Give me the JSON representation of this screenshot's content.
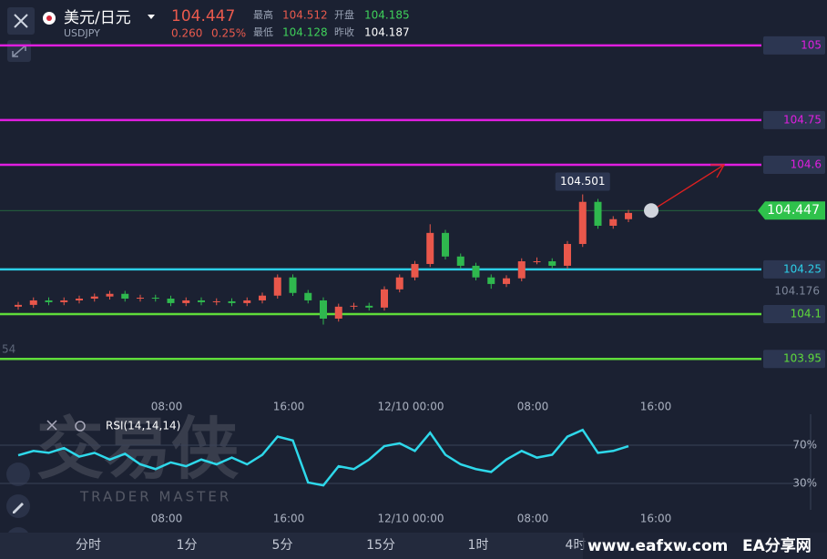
{
  "header": {
    "symbol": "美元/日元",
    "code": "USDJPY",
    "price": "104.447",
    "change": "0.260",
    "change_pct": "0.25%",
    "stats": [
      {
        "label": "最高",
        "value": "104.512"
      },
      {
        "label": "开盘",
        "value": "104.185"
      },
      {
        "label": "最低",
        "value": "104.128"
      },
      {
        "label": "昨收",
        "value": "104.187"
      }
    ]
  },
  "chart_data": [
    {
      "type": "candlestick",
      "ylim": [
        103.841,
        105.152
      ],
      "up_color": "#e9574b",
      "down_color": "#2fb84e",
      "open": [
        104.125,
        104.131,
        104.146,
        104.14,
        104.146,
        104.152,
        104.159,
        104.168,
        104.152,
        104.155,
        104.152,
        104.137,
        104.146,
        104.14,
        104.143,
        104.137,
        104.146,
        104.162,
        104.223,
        104.171,
        104.146,
        104.085,
        104.125,
        104.128,
        104.122,
        104.183,
        104.223,
        104.268,
        104.372,
        104.293,
        104.262,
        104.223,
        104.201,
        104.22,
        104.277,
        104.277,
        104.262,
        104.335,
        104.476,
        104.396,
        104.418
      ],
      "close": [
        104.131,
        104.146,
        104.14,
        104.146,
        104.152,
        104.159,
        104.168,
        104.152,
        104.155,
        104.152,
        104.137,
        104.146,
        104.14,
        104.143,
        104.137,
        104.146,
        104.162,
        104.223,
        104.171,
        104.146,
        104.085,
        104.125,
        104.128,
        104.122,
        104.183,
        104.223,
        104.268,
        104.372,
        104.293,
        104.262,
        104.223,
        104.201,
        104.22,
        104.277,
        104.277,
        104.262,
        104.335,
        104.476,
        104.396,
        104.418,
        104.439
      ],
      "high": [
        104.141,
        104.156,
        104.156,
        104.156,
        104.162,
        104.169,
        104.178,
        104.178,
        104.165,
        104.165,
        104.162,
        104.156,
        104.156,
        104.153,
        104.153,
        104.156,
        104.172,
        104.233,
        104.233,
        104.181,
        104.156,
        104.135,
        104.138,
        104.138,
        104.193,
        104.233,
        104.278,
        104.401,
        104.382,
        104.303,
        104.272,
        104.233,
        104.23,
        104.287,
        104.29,
        104.287,
        104.345,
        104.501,
        104.486,
        104.428,
        104.449
      ],
      "low": [
        104.115,
        104.121,
        104.13,
        104.13,
        104.136,
        104.142,
        104.149,
        104.142,
        104.142,
        104.142,
        104.127,
        104.127,
        104.13,
        104.13,
        104.127,
        104.127,
        104.136,
        104.152,
        104.161,
        104.136,
        104.065,
        104.075,
        104.115,
        104.112,
        104.112,
        104.173,
        104.213,
        104.258,
        104.283,
        104.252,
        104.213,
        104.185,
        104.191,
        104.21,
        104.267,
        104.252,
        104.252,
        104.325,
        104.386,
        104.386,
        104.408
      ],
      "levels": [
        {
          "value": 105,
          "color": "#e01ee0"
        },
        {
          "value": 104.75,
          "color": "#e01ee0"
        },
        {
          "value": 104.6,
          "color": "#e01ee0"
        },
        {
          "value": 104.25,
          "color": "#2ccfe8"
        },
        {
          "value": 104.1,
          "color": "#5fdc3a"
        },
        {
          "value": 103.95,
          "color": "#5fdc3a"
        }
      ],
      "current_price": 104.447,
      "high_marker": 104.501,
      "axis_label": 104.176,
      "left_label": "54",
      "time_labels": [
        "08:00",
        "16:00",
        "12/10 00:00",
        "08:00",
        "16:00"
      ]
    },
    {
      "type": "line",
      "title": "RSI(14,14,14)",
      "ylim": [
        0,
        100
      ],
      "color": "#2ed8ea",
      "values": [
        59.5,
        64,
        62,
        67,
        58,
        62,
        55,
        61,
        50,
        45,
        52,
        48,
        55,
        50,
        57,
        50,
        60,
        79,
        75,
        31,
        28,
        48,
        45,
        55,
        69,
        72,
        64,
        83,
        60,
        50,
        45,
        42,
        55,
        64,
        57,
        60,
        79,
        86,
        62,
        64,
        69
      ],
      "yticks": [
        {
          "value": 70,
          "label": "70%"
        },
        {
          "value": 30,
          "label": "30%"
        }
      ],
      "time_labels": [
        "08:00",
        "16:00",
        "12/10 00:00",
        "08:00",
        "16:00"
      ]
    }
  ],
  "tabs": [
    "分时",
    "1分",
    "5分",
    "15分",
    "1时",
    "4时"
  ],
  "watermark": {
    "logo": "交易侠",
    "sub": "TRADER MASTER",
    "site": "www.eafxw.com",
    "site_name": "EA分享网"
  }
}
